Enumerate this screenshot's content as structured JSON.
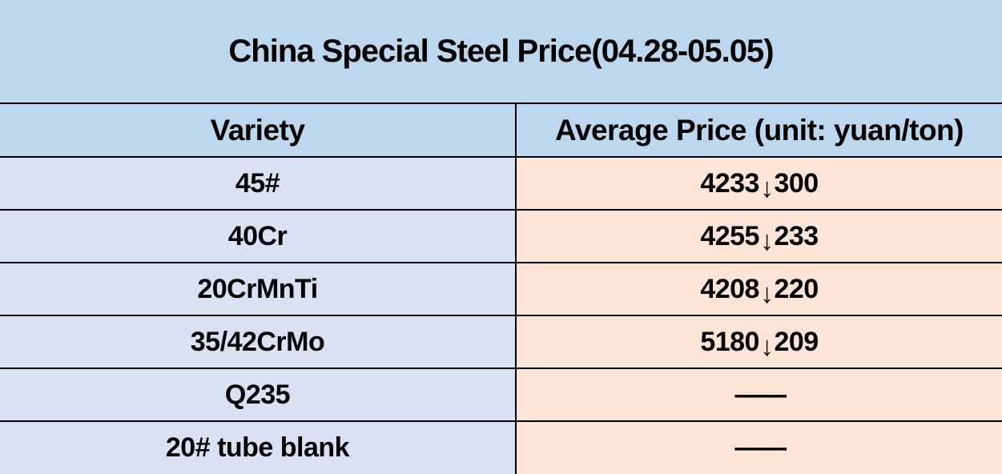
{
  "title": "China Special Steel Price(04.28-05.05)",
  "columns": {
    "variety": "Variety",
    "price": "Average Price (unit: yuan/ton)"
  },
  "rows": [
    {
      "variety": "45#",
      "value": "4233",
      "arrow": "↓",
      "change": "300"
    },
    {
      "variety": "40Cr",
      "value": "4255",
      "arrow": "↓",
      "change": "233"
    },
    {
      "variety": "20CrMnTi",
      "value": "4208",
      "arrow": "↓",
      "change": "220"
    },
    {
      "variety": "35/42CrMo",
      "value": "5180",
      "arrow": "↓",
      "change": "209"
    },
    {
      "variety": "Q235",
      "value": "——",
      "arrow": "",
      "change": ""
    },
    {
      "variety": "20# tube blank",
      "value": "——",
      "arrow": "",
      "change": ""
    }
  ],
  "icons": {
    "down_arrow": "down-arrow-icon"
  },
  "colors": {
    "title_bg": "#BDD7EE",
    "header_bg": "#BDD7EE",
    "variety_cell_bg": "#D9E1F2",
    "price_cell_bg": "#FCE4D6",
    "border": "#000000",
    "text": "#000000"
  }
}
